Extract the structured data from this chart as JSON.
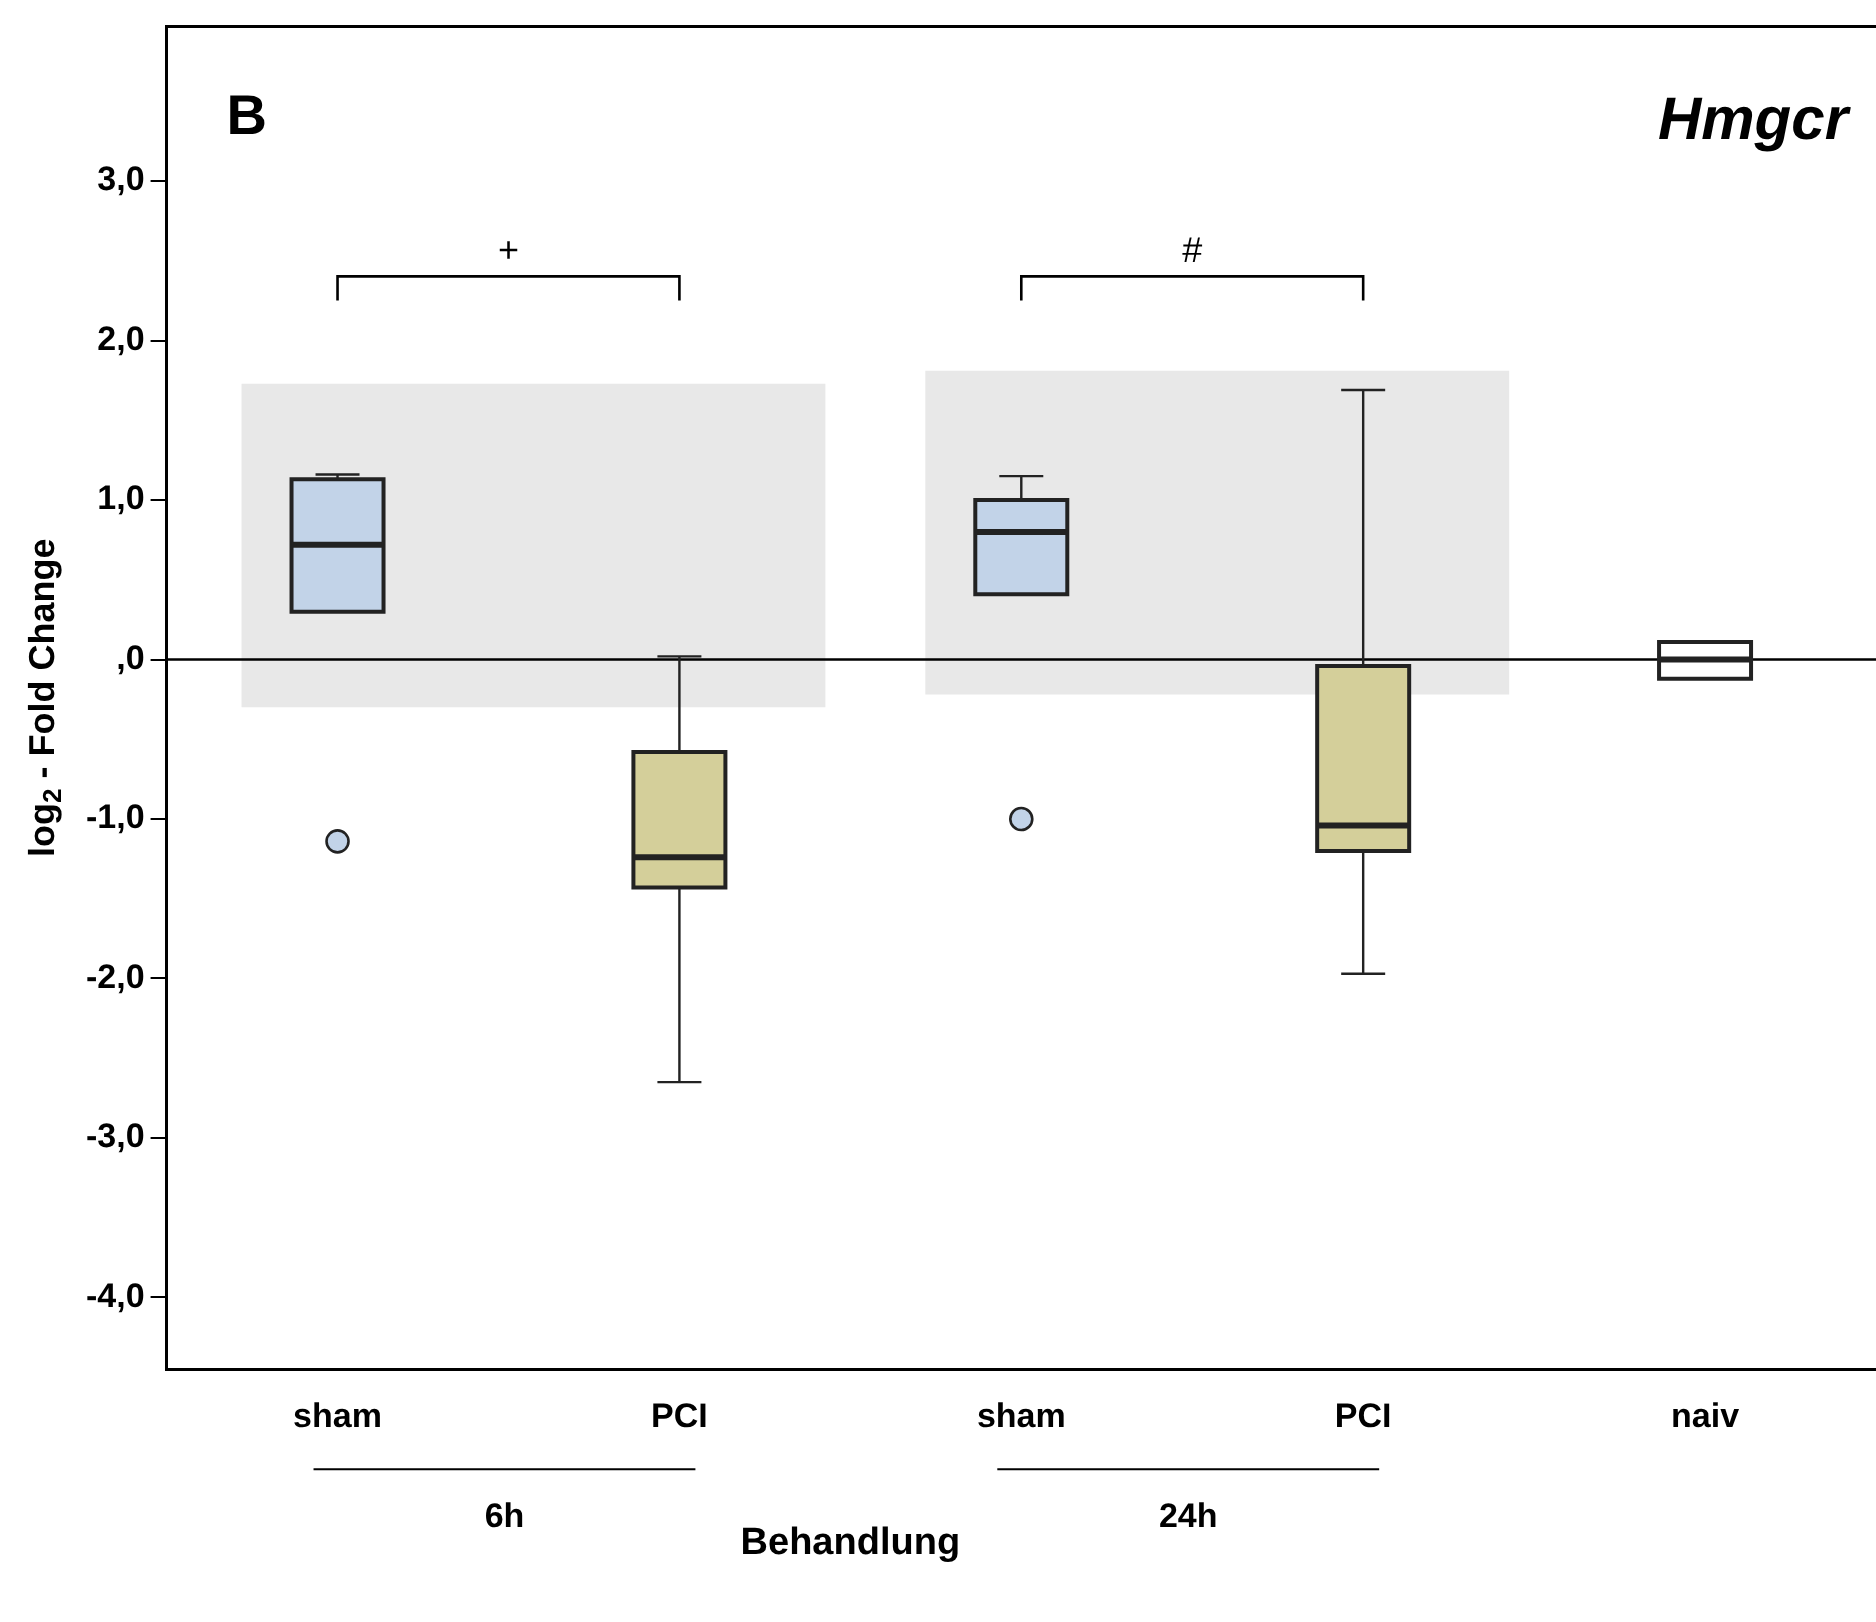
{
  "chart_data": {
    "type": "box",
    "title": "Hmgcr",
    "xlabel": "Behandlung",
    "ylabel": "log$_{2}$ - Fold Change",
    "categories": [
      "sham",
      "PCI",
      "sham",
      "PCI",
      "naiv"
    ],
    "colors": [
      "#c2d3e8",
      "#d4cf9a",
      "#c2d3e8",
      "#d4cf9a",
      "#ffffff"
    ],
    "boxes": [
      {
        "low": 0.3,
        "q1": 0.3,
        "median": 0.72,
        "q3": 1.13,
        "high": 1.16,
        "outliers": [
          -1.14
        ]
      },
      {
        "low": -2.65,
        "q1": -1.43,
        "median": -1.24,
        "q3": -0.58,
        "high": 0.02
      },
      {
        "low": 0.41,
        "q1": 0.41,
        "median": 0.8,
        "q3": 1.0,
        "high": 1.15,
        "outliers": [
          -1.0
        ]
      },
      {
        "low": -1.97,
        "q1": -1.2,
        "median": -1.04,
        "q3": -0.04,
        "high": 1.69
      },
      {
        "low": -0.12,
        "q1": -0.12,
        "median": 0.0,
        "q3": 0.11,
        "high": 0.11
      }
    ],
    "ylim": [
      -4.45,
      3.97
    ],
    "yticks": [
      {
        "value": -4,
        "label": "-4,0"
      },
      {
        "value": -3,
        "label": "-3,0"
      },
      {
        "value": -2,
        "label": "-2,0"
      },
      {
        "value": -1,
        "label": "-1,0"
      },
      {
        "value": 0,
        "label": ",0"
      },
      {
        "value": 1,
        "label": "1,0"
      },
      {
        "value": 2,
        "label": "2,0"
      },
      {
        "value": 3,
        "label": "3,0"
      }
    ],
    "ref_lines": [
      {
        "axis": "y",
        "value": 0,
        "color": "#000000"
      }
    ],
    "bands": [
      {
        "axis": "y",
        "from": -0.3,
        "to": 1.73,
        "color": "#e8e8e8"
      },
      {
        "axis": "y",
        "from": -0.22,
        "to": 1.81,
        "color": "#e8e8e8"
      }
    ],
    "annotations": [
      "B",
      "+",
      "#",
      "6h",
      "24h"
    ],
    "grid": false,
    "legend": false
  }
}
